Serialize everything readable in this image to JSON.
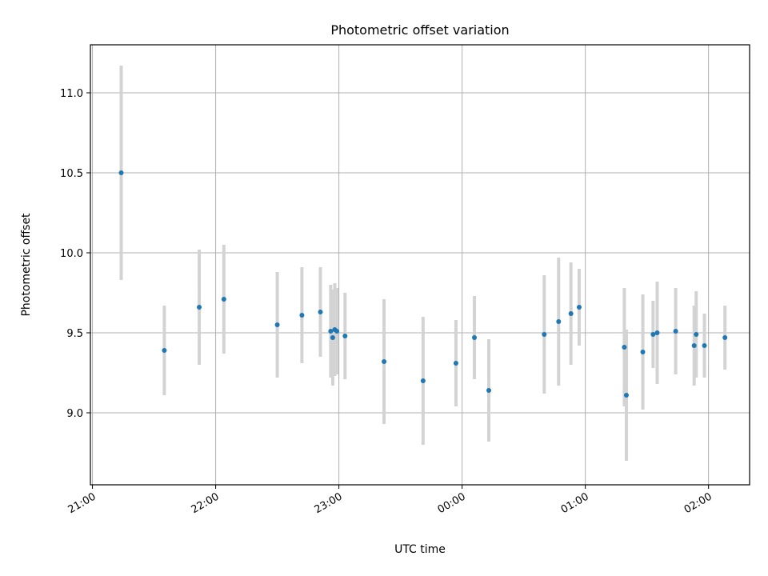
{
  "chart_data": {
    "type": "scatter",
    "title": "Photometric offset variation",
    "xlabel": "UTC time",
    "ylabel": "Photometric offset",
    "x_axis_type": "time",
    "xlim": [
      "20:59",
      "02:20"
    ],
    "ylim": [
      8.55,
      11.3
    ],
    "x_ticks": [
      "21:00",
      "22:00",
      "23:00",
      "00:00",
      "01:00",
      "02:00"
    ],
    "y_ticks": [
      "9.0",
      "9.5",
      "10.0",
      "10.5",
      "11.0"
    ],
    "grid": true,
    "marker_color": "#1f77b4",
    "errorbar_color": "#d3d3d3",
    "points": [
      {
        "t": "21:14",
        "y": 10.5,
        "err": 0.67
      },
      {
        "t": "21:35",
        "y": 9.39,
        "err": 0.28
      },
      {
        "t": "21:52",
        "y": 9.66,
        "err": 0.36
      },
      {
        "t": "22:04",
        "y": 9.71,
        "err": 0.34
      },
      {
        "t": "22:30",
        "y": 9.55,
        "err": 0.33
      },
      {
        "t": "22:42",
        "y": 9.61,
        "err": 0.3
      },
      {
        "t": "22:51",
        "y": 9.63,
        "err": 0.28
      },
      {
        "t": "22:56",
        "y": 9.51,
        "err": 0.29
      },
      {
        "t": "22:57",
        "y": 9.47,
        "err": 0.3
      },
      {
        "t": "22:58",
        "y": 9.52,
        "err": 0.29
      },
      {
        "t": "22:59",
        "y": 9.51,
        "err": 0.27
      },
      {
        "t": "23:03",
        "y": 9.48,
        "err": 0.27
      },
      {
        "t": "23:22",
        "y": 9.32,
        "err": 0.39
      },
      {
        "t": "23:41",
        "y": 9.2,
        "err": 0.4
      },
      {
        "t": "23:57",
        "y": 9.31,
        "err": 0.27
      },
      {
        "t": "00:06",
        "y": 9.47,
        "err": 0.26
      },
      {
        "t": "00:13",
        "y": 9.14,
        "err": 0.32
      },
      {
        "t": "00:40",
        "y": 9.49,
        "err": 0.37
      },
      {
        "t": "00:47",
        "y": 9.57,
        "err": 0.4
      },
      {
        "t": "00:53",
        "y": 9.62,
        "err": 0.32
      },
      {
        "t": "00:57",
        "y": 9.66,
        "err": 0.24
      },
      {
        "t": "01:19",
        "y": 9.41,
        "err": 0.37
      },
      {
        "t": "01:20",
        "y": 9.11,
        "err": 0.41
      },
      {
        "t": "01:28",
        "y": 9.38,
        "err": 0.36
      },
      {
        "t": "01:33",
        "y": 9.49,
        "err": 0.21
      },
      {
        "t": "01:35",
        "y": 9.5,
        "err": 0.32
      },
      {
        "t": "01:44",
        "y": 9.51,
        "err": 0.27
      },
      {
        "t": "01:53",
        "y": 9.42,
        "err": 0.25
      },
      {
        "t": "01:54",
        "y": 9.49,
        "err": 0.27
      },
      {
        "t": "01:58",
        "y": 9.42,
        "err": 0.2
      },
      {
        "t": "02:08",
        "y": 9.47,
        "err": 0.2
      }
    ]
  }
}
